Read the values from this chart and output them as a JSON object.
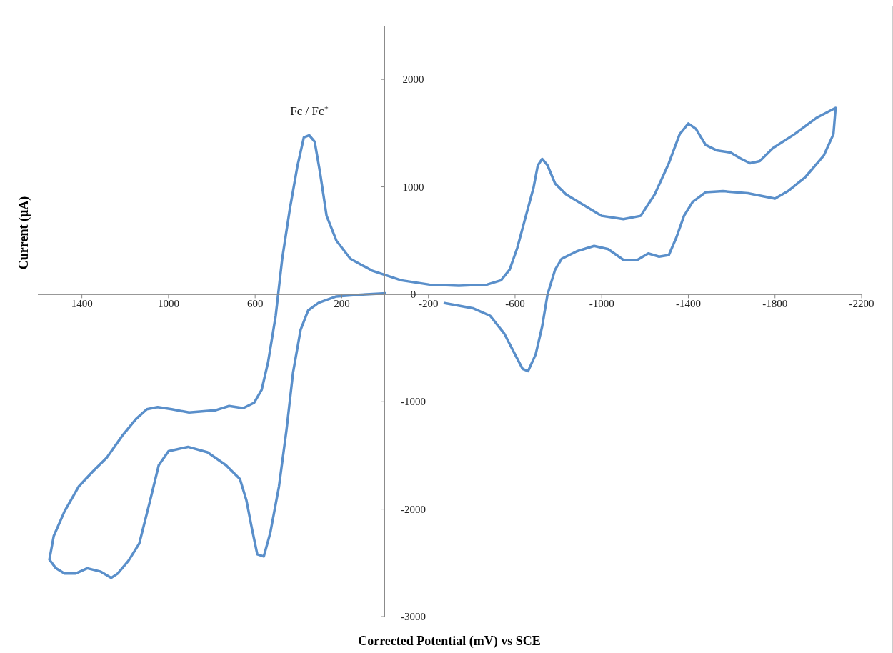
{
  "chart_data": {
    "type": "line",
    "xlabel": "Corrected Potential (mV) vs SCE",
    "ylabel": "Current (µA)",
    "xlim": [
      1600,
      -2200
    ],
    "xticks": [
      1400,
      1000,
      600,
      200,
      -200,
      -600,
      -1000,
      -1400,
      -1800,
      -2200
    ],
    "ylim": [
      -3000,
      2500
    ],
    "yticks": [
      -3000,
      -2000,
      -1000,
      0,
      1000,
      2000
    ],
    "annotations": [
      {
        "text": "Fc / Fc⁺",
        "x": 350,
        "y": 1480
      }
    ],
    "series": [
      {
        "color": "#5a8fca",
        "x": [
          -5,
          125,
          225,
          307,
          355,
          390,
          425,
          455,
          490,
          530,
          560,
          590,
          615,
          640,
          670,
          735,
          820,
          910,
          1000,
          1045,
          1085,
          1135,
          1185,
          1235,
          1265,
          1315,
          1375,
          1430,
          1480,
          1520,
          1550,
          1530,
          1480,
          1415,
          1350,
          1285,
          1215,
          1150,
          1100,
          1050,
          985,
          905,
          785,
          720,
          655,
          605,
          570,
          540,
          505,
          475,
          440,
          405,
          375,
          350,
          325,
          300,
          270,
          225,
          160,
          60,
          -75,
          -205,
          -340,
          -470,
          -535,
          -575,
          -610,
          -650,
          -685,
          -705,
          -725,
          -750,
          -785,
          -835,
          -900,
          -1000,
          -1100,
          -1180,
          -1245,
          -1310,
          -1360,
          -1400,
          -1435,
          -1480,
          -1530,
          -1595,
          -1645,
          -1685,
          -1730,
          -1790,
          -1890,
          -1990,
          -2080,
          -2070,
          -2025,
          -1940,
          -1860,
          -1800,
          -1750,
          -1675,
          -1560,
          -1480,
          -1420,
          -1380,
          -1345,
          -1310,
          -1265,
          -1215,
          -1165,
          -1100,
          -1030,
          -965,
          -885,
          -815,
          -785,
          -750,
          -725,
          -695,
          -660,
          -635,
          -600,
          -550,
          -485,
          -405,
          -270
        ],
        "values": [
          10,
          -5,
          -20,
          -80,
          -150,
          -330,
          -730,
          -1260,
          -1790,
          -2220,
          -2440,
          -2420,
          -2180,
          -1920,
          -1720,
          -1590,
          -1470,
          -1420,
          -1460,
          -1590,
          -1920,
          -2320,
          -2480,
          -2600,
          -2640,
          -2580,
          -2550,
          -2600,
          -2600,
          -2550,
          -2470,
          -2250,
          -2020,
          -1790,
          -1650,
          -1520,
          -1320,
          -1160,
          -1070,
          -1050,
          -1070,
          -1100,
          -1080,
          -1040,
          -1060,
          -1010,
          -890,
          -630,
          -200,
          330,
          790,
          1190,
          1460,
          1480,
          1420,
          1130,
          730,
          500,
          330,
          220,
          130,
          90,
          80,
          90,
          130,
          230,
          430,
          730,
          990,
          1200,
          1260,
          1200,
          1030,
          930,
          850,
          730,
          700,
          730,
          930,
          1220,
          1490,
          1590,
          1540,
          1390,
          1340,
          1320,
          1260,
          1220,
          1240,
          1360,
          1490,
          1640,
          1735,
          1490,
          1290,
          1090,
          960,
          890,
          910,
          940,
          960,
          950,
          860,
          730,
          530,
          365,
          350,
          380,
          320,
          320,
          420,
          450,
          400,
          330,
          230,
          0,
          -300,
          -560,
          -715,
          -695,
          -560,
          -365,
          -200,
          -130,
          -80
        ]
      }
    ]
  }
}
